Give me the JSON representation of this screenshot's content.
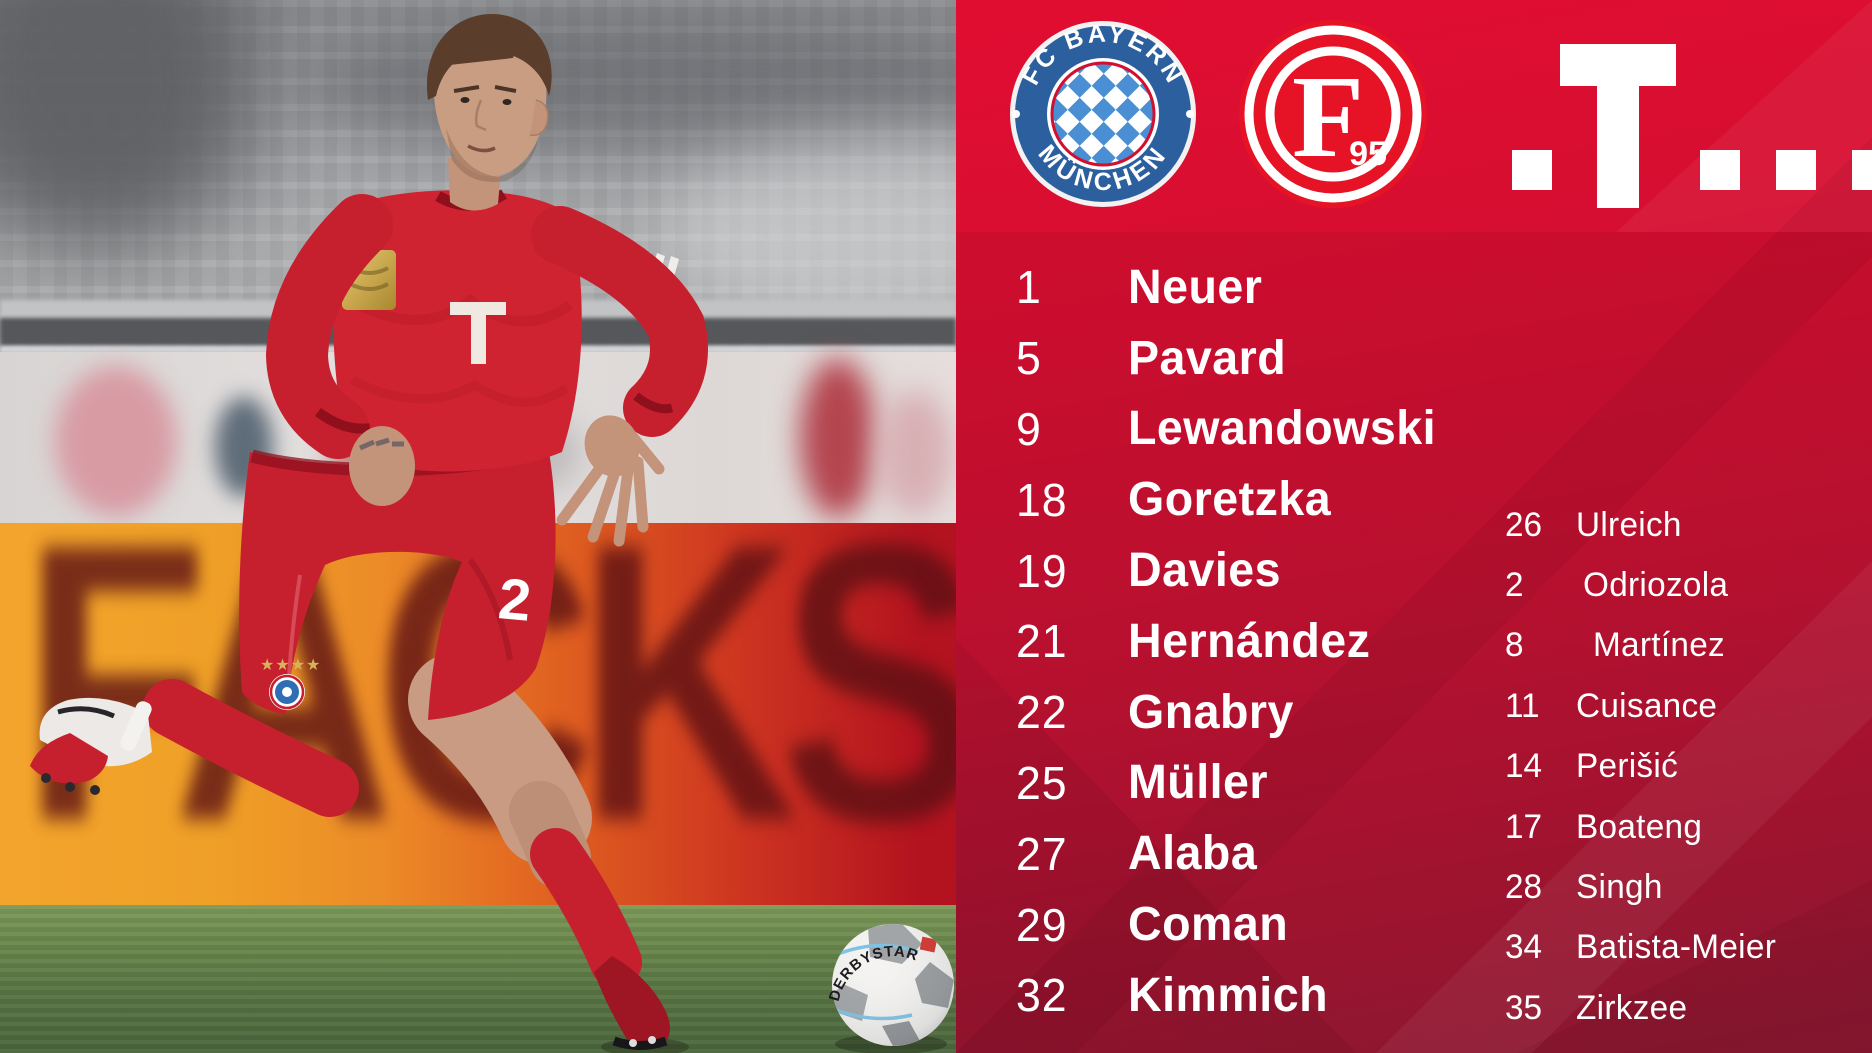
{
  "header": {
    "bayern_badge": {
      "top_text": "FC BAYERN",
      "bottom_text": "MÜNCHEN"
    },
    "fortuna_badge": {
      "letter": "F",
      "founding_year": "95"
    },
    "icons": {
      "sponsor": "telekom-t-logo"
    }
  },
  "lineup": {
    "rows": [
      {
        "number": "1",
        "name": "Neuer"
      },
      {
        "number": "5",
        "name": "Pavard"
      },
      {
        "number": "9",
        "name": "Lewandowski"
      },
      {
        "number": "18",
        "name": "Goretzka"
      },
      {
        "number": "19",
        "name": "Davies"
      },
      {
        "number": "21",
        "name": "Hernández"
      },
      {
        "number": "22",
        "name": "Gnabry"
      },
      {
        "number": "25",
        "name": "Müller"
      },
      {
        "number": "27",
        "name": "Alaba"
      },
      {
        "number": "29",
        "name": "Coman"
      },
      {
        "number": "32",
        "name": "Kimmich"
      }
    ]
  },
  "bench": {
    "rows": [
      {
        "number": "26",
        "name": "Ulreich"
      },
      {
        "number": "2",
        "name": "Odriozola"
      },
      {
        "number": "8",
        "name": "Martínez"
      },
      {
        "number": "11",
        "name": "Cuisance"
      },
      {
        "number": "14",
        "name": "Perišić"
      },
      {
        "number": "17",
        "name": "Boateng"
      },
      {
        "number": "28",
        "name": "Singh"
      },
      {
        "number": "34",
        "name": "Batista-Meier"
      },
      {
        "number": "35",
        "name": "Zirkzee"
      }
    ]
  },
  "photo": {
    "board_text": "FACKST",
    "ball_brand": "DERBYSTAR",
    "shorts_number": "2",
    "crest_stars": "★★★★"
  },
  "colors": {
    "panel_red_top": "#e10d31",
    "panel_red_bottom": "#8f1a33",
    "bayern_blue": "#2b5f9e",
    "fortuna_red": "#e61326",
    "board_orange": "#f3a42c",
    "board_red": "#b3131f",
    "kit_red": "#cf2331",
    "grass_green": "#5c7a46",
    "text_white": "#ffffff"
  }
}
